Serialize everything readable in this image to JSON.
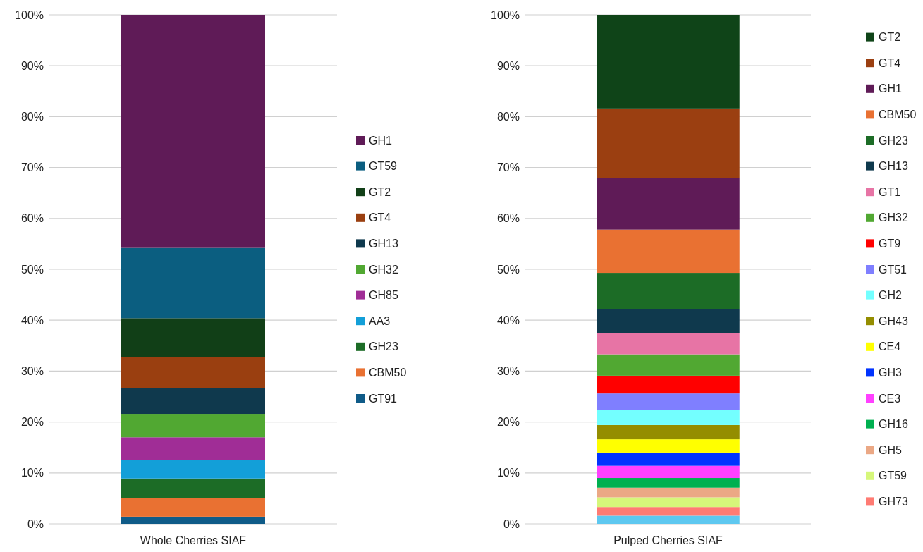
{
  "chart_data": [
    {
      "type": "bar",
      "stacked": true,
      "categories": [
        "Whole Cherries SIAF"
      ],
      "ylim": [
        0,
        100
      ],
      "yticks": [
        {
          "value": 0,
          "label": "0%"
        },
        {
          "value": 10,
          "label": "10%"
        },
        {
          "value": 20,
          "label": "20%"
        },
        {
          "value": 30,
          "label": "30%"
        },
        {
          "value": 40,
          "label": "40%"
        },
        {
          "value": 50,
          "label": "50%"
        },
        {
          "value": 60,
          "label": "60%"
        },
        {
          "value": 70,
          "label": "70%"
        },
        {
          "value": 80,
          "label": "80%"
        },
        {
          "value": 90,
          "label": "90%"
        },
        {
          "value": 100,
          "label": "100%"
        }
      ],
      "grid": "y",
      "legend": "right",
      "series": [
        {
          "name": "GT91",
          "color": "#0f5b88",
          "values": [
            1.4
          ]
        },
        {
          "name": "CBM50",
          "color": "#e97132",
          "values": [
            3.7
          ]
        },
        {
          "name": "GH23",
          "color": "#1c6c26",
          "values": [
            3.8
          ]
        },
        {
          "name": "AA3",
          "color": "#139fd8",
          "values": [
            3.7
          ]
        },
        {
          "name": "GH85",
          "color": "#a02d96",
          "values": [
            4.4
          ]
        },
        {
          "name": "GH32",
          "color": "#51a832",
          "values": [
            4.6
          ]
        },
        {
          "name": "GH13",
          "color": "#0f394d",
          "values": [
            5.1
          ]
        },
        {
          "name": "GT4",
          "color": "#9a3f10",
          "values": [
            6.1
          ]
        },
        {
          "name": "GT2",
          "color": "#113f17",
          "values": [
            7.6
          ]
        },
        {
          "name": "GT59",
          "color": "#0b5e80",
          "values": [
            13.8
          ]
        },
        {
          "name": "GH1",
          "color": "#5f1b57",
          "values": [
            45.8
          ]
        }
      ]
    },
    {
      "type": "bar",
      "stacked": true,
      "categories": [
        "Pulped Cherries SIAF"
      ],
      "ylim": [
        0,
        100
      ],
      "yticks": [
        {
          "value": 0,
          "label": "0%"
        },
        {
          "value": 10,
          "label": "10%"
        },
        {
          "value": 20,
          "label": "20%"
        },
        {
          "value": 30,
          "label": "30%"
        },
        {
          "value": 40,
          "label": "40%"
        },
        {
          "value": 50,
          "label": "50%"
        },
        {
          "value": 60,
          "label": "60%"
        },
        {
          "value": 70,
          "label": "70%"
        },
        {
          "value": 80,
          "label": "80%"
        },
        {
          "value": 90,
          "label": "90%"
        },
        {
          "value": 100,
          "label": "100%"
        }
      ],
      "grid": "y",
      "legend": "right",
      "series": [
        {
          "color": "#5ec8f0",
          "values": [
            1.6
          ]
        },
        {
          "name": "GH73",
          "color": "#ff7b73",
          "values": [
            1.7
          ]
        },
        {
          "name": "GT59",
          "color": "#d6f77a",
          "values": [
            1.9
          ]
        },
        {
          "name": "GH5",
          "color": "#eba885",
          "values": [
            1.9
          ]
        },
        {
          "name": "GH16",
          "color": "#00b050",
          "values": [
            1.9
          ]
        },
        {
          "name": "CE3",
          "color": "#ff40ff",
          "values": [
            2.4
          ]
        },
        {
          "name": "GH3",
          "color": "#0033ff",
          "values": [
            2.6
          ]
        },
        {
          "name": "CE4",
          "color": "#ffff00",
          "values": [
            2.6
          ]
        },
        {
          "name": "GH43",
          "color": "#948d00",
          "values": [
            2.8
          ]
        },
        {
          "name": "GH2",
          "color": "#73ffff",
          "values": [
            2.9
          ]
        },
        {
          "name": "GT51",
          "color": "#7f7fff",
          "values": [
            3.3
          ]
        },
        {
          "name": "GT9",
          "color": "#ff0000",
          "values": [
            3.5
          ]
        },
        {
          "name": "GH32",
          "color": "#51a832",
          "values": [
            4.2
          ]
        },
        {
          "name": "GT1",
          "color": "#e774a5",
          "values": [
            4.1
          ]
        },
        {
          "name": "GH13",
          "color": "#0f394d",
          "values": [
            4.8
          ]
        },
        {
          "name": "GH23",
          "color": "#1c6c26",
          "values": [
            7.1
          ]
        },
        {
          "name": "CBM50",
          "color": "#e97132",
          "values": [
            8.5
          ]
        },
        {
          "name": "GH1",
          "color": "#5f1b57",
          "values": [
            10.2
          ]
        },
        {
          "name": "GT4",
          "color": "#9b3f11",
          "values": [
            13.6
          ]
        },
        {
          "name": "GT2",
          "color": "#0f4418",
          "values": [
            18.4
          ]
        }
      ]
    }
  ]
}
